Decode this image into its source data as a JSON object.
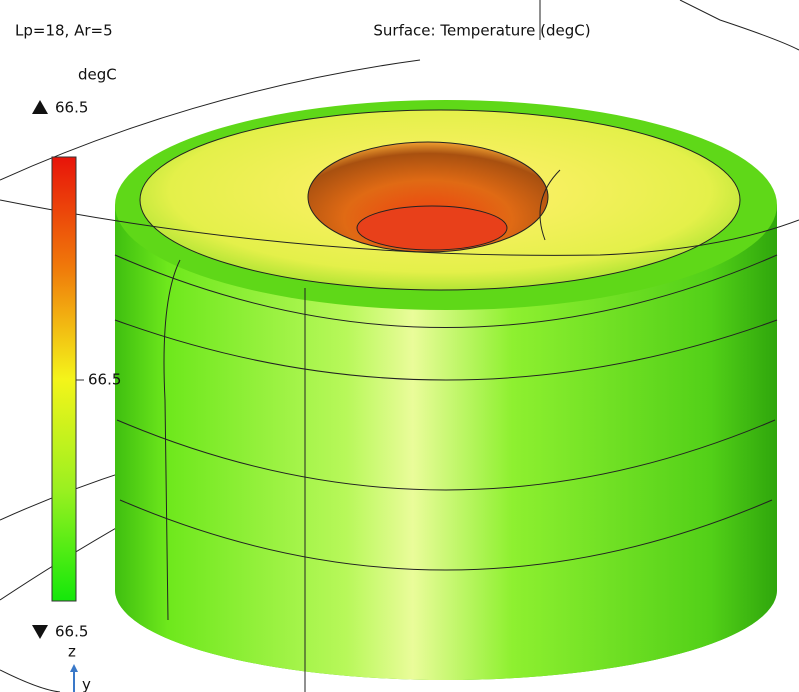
{
  "header": {
    "label": "Lp=18, Ar=5",
    "title": "Surface: Temperature (degC)"
  },
  "legend": {
    "unit": "degC",
    "max": "66.5",
    "mid": "66.5",
    "min": "66.5"
  },
  "axes": {
    "z": "z",
    "y": "y"
  }
}
